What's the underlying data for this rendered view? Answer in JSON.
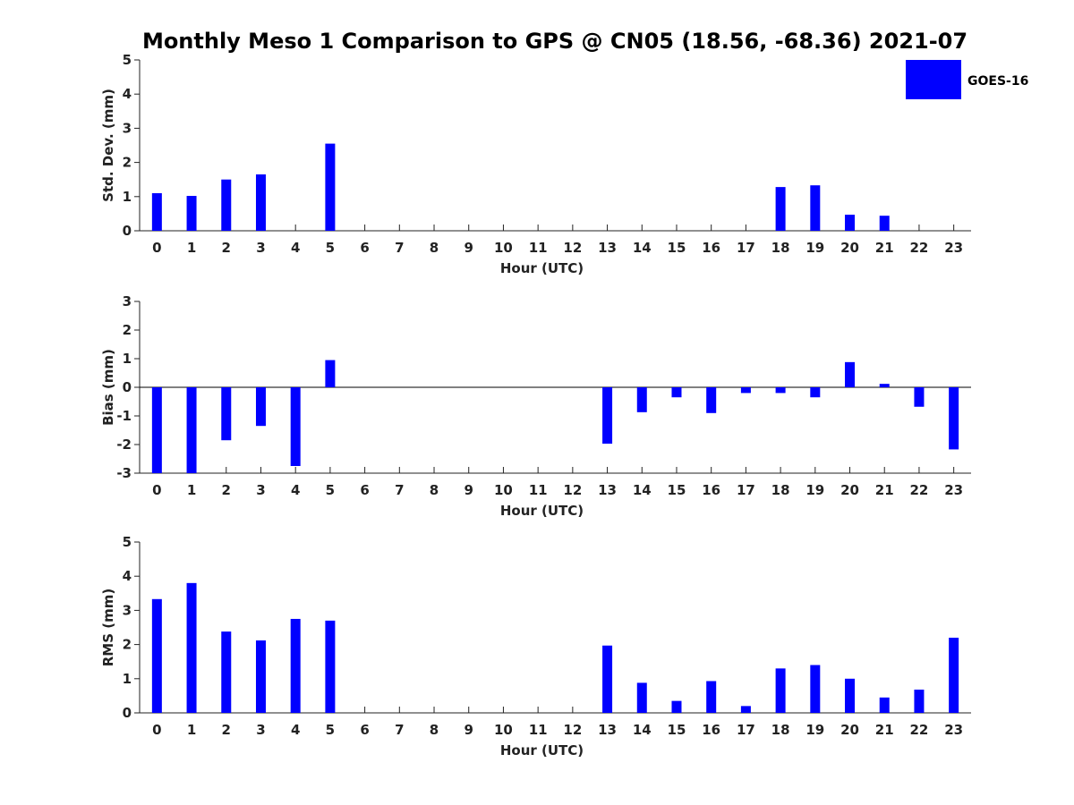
{
  "chart_data": {
    "title": "Monthly Meso 1 Comparison to GPS @ CN05 (18.56, -68.36) 2021-07",
    "type": "bar",
    "legend": {
      "label": "GOES-16",
      "placement": "top-right"
    },
    "series_color": "#0000ff",
    "panels": [
      {
        "id": "std",
        "ylabel": "Std. Dev. (mm)",
        "xlabel": "Hour (UTC)",
        "ylim": [
          0,
          5
        ],
        "yticks": [
          0,
          1,
          2,
          3,
          4,
          5
        ],
        "categories": [
          "0",
          "1",
          "2",
          "3",
          "4",
          "5",
          "6",
          "7",
          "8",
          "9",
          "10",
          "11",
          "12",
          "13",
          "14",
          "15",
          "16",
          "17",
          "18",
          "19",
          "20",
          "21",
          "22",
          "23"
        ],
        "values": [
          1.1,
          1.02,
          1.5,
          1.65,
          null,
          2.55,
          null,
          null,
          null,
          null,
          null,
          null,
          null,
          null,
          null,
          null,
          null,
          null,
          1.28,
          1.33,
          0.47,
          0.44,
          null,
          null
        ]
      },
      {
        "id": "bias",
        "ylabel": "Bias (mm)",
        "xlabel": "Hour (UTC)",
        "ylim": [
          -3,
          3
        ],
        "yticks": [
          -3,
          -2,
          -1,
          0,
          1,
          2,
          3
        ],
        "categories": [
          "0",
          "1",
          "2",
          "3",
          "4",
          "5",
          "6",
          "7",
          "8",
          "9",
          "10",
          "11",
          "12",
          "13",
          "14",
          "15",
          "16",
          "17",
          "18",
          "19",
          "20",
          "21",
          "22",
          "23"
        ],
        "values": [
          -3.0,
          -3.0,
          -1.85,
          -1.35,
          -2.75,
          0.95,
          null,
          null,
          null,
          null,
          null,
          null,
          null,
          -1.97,
          -0.87,
          -0.35,
          -0.9,
          -0.2,
          -0.2,
          -0.35,
          0.88,
          0.12,
          -0.68,
          -2.17
        ]
      },
      {
        "id": "rms",
        "ylabel": "RMS (mm)",
        "xlabel": "Hour (UTC)",
        "ylim": [
          0,
          5
        ],
        "yticks": [
          0,
          1,
          2,
          3,
          4,
          5
        ],
        "categories": [
          "0",
          "1",
          "2",
          "3",
          "4",
          "5",
          "6",
          "7",
          "8",
          "9",
          "10",
          "11",
          "12",
          "13",
          "14",
          "15",
          "16",
          "17",
          "18",
          "19",
          "20",
          "21",
          "22",
          "23"
        ],
        "values": [
          3.33,
          3.8,
          2.38,
          2.12,
          2.75,
          2.7,
          null,
          null,
          null,
          null,
          null,
          null,
          null,
          1.97,
          0.88,
          0.35,
          0.93,
          0.2,
          1.3,
          1.4,
          1.0,
          0.45,
          0.68,
          2.2
        ]
      }
    ]
  }
}
